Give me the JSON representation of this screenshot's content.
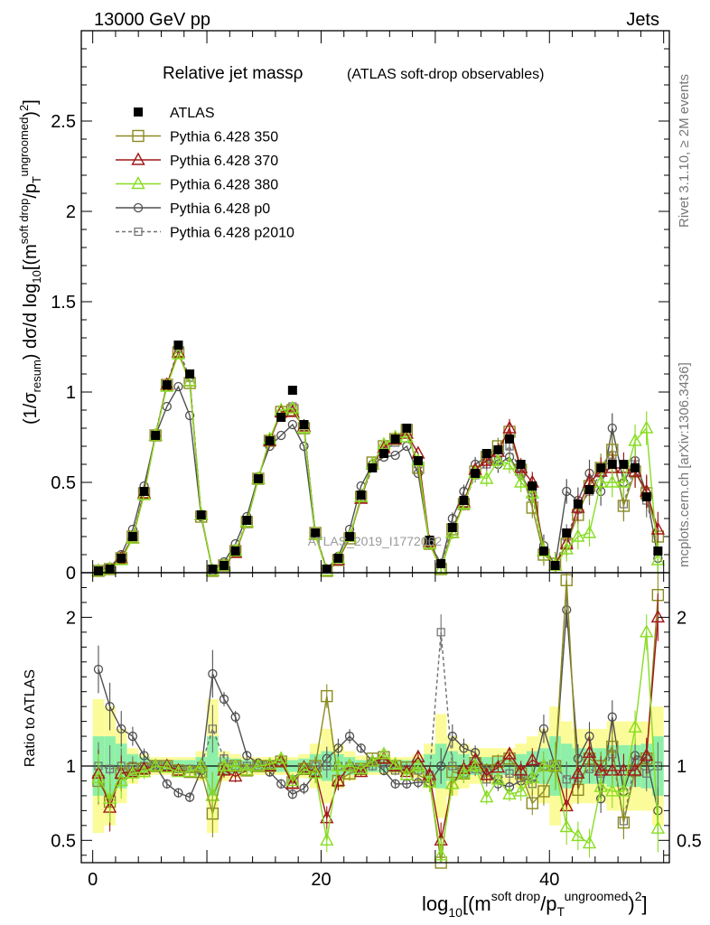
{
  "header": {
    "energy_label": "13000 GeV pp",
    "process_label": "Jets",
    "title_main": "Relative jet massρ",
    "title_sub": "(ATLAS soft-drop observables)",
    "watermark": "ATLAS_2019_I1772062",
    "side_rivet": "Rivet 3.1.10, ≥ 2M events",
    "side_mcplots": "mcplots.cern.ch [arXiv:1306.3436]"
  },
  "axes": {
    "main_ylabel": "(1/σ_resum) dσ/d log10[(m^soft drop/p_T^ungroomed)^2]",
    "ratio_ylabel": "Ratio to ATLAS",
    "xlabel": "log10[(m^soft drop/p_T^ungroomed)^2]",
    "main_yticks": [
      "0",
      "0.5",
      "1",
      "1.5",
      "2",
      "2.5"
    ],
    "ratio_yticks": [
      "0.5",
      "1",
      "2"
    ],
    "xticks": [
      "0",
      "20",
      "40"
    ]
  },
  "legend": [
    {
      "label": "ATLAS",
      "color": "#000000",
      "marker": "filled-square",
      "line": "none"
    },
    {
      "label": "Pythia 6.428 350",
      "color": "#8b8b22",
      "marker": "open-square",
      "line": "solid"
    },
    {
      "label": "Pythia 6.428 370",
      "color": "#a01818",
      "marker": "open-triangle",
      "line": "solid"
    },
    {
      "label": "Pythia 6.428 380",
      "color": "#88dd22",
      "marker": "open-triangle",
      "line": "solid"
    },
    {
      "label": "Pythia 6.428 p0",
      "color": "#505050",
      "marker": "open-circle",
      "line": "solid"
    },
    {
      "label": "Pythia 6.428 p2010",
      "color": "#707070",
      "marker": "open-square-small",
      "line": "dashed"
    }
  ],
  "chart_data": {
    "type": "line",
    "xlim": [
      -1,
      50.5
    ],
    "ylim": [
      0,
      3
    ],
    "ratio_ylim": [
      0.35,
      2.3
    ],
    "x": [
      0.5,
      1.5,
      2.5,
      3.5,
      4.5,
      5.5,
      6.5,
      7.5,
      8.5,
      9.5,
      10.5,
      11.5,
      12.5,
      13.5,
      14.5,
      15.5,
      16.5,
      17.5,
      18.5,
      19.5,
      20.5,
      21.5,
      22.5,
      23.5,
      24.5,
      25.5,
      26.5,
      27.5,
      28.5,
      29.5,
      30.5,
      31.5,
      32.5,
      33.5,
      34.5,
      35.5,
      36.5,
      37.5,
      38.5,
      39.5,
      40.5,
      41.5,
      42.5,
      43.5,
      44.5,
      45.5,
      46.5,
      47.5,
      48.5,
      49.5
    ],
    "series": [
      {
        "name": "ATLAS",
        "values": [
          0.01,
          0.02,
          0.08,
          0.2,
          0.45,
          0.76,
          1.04,
          1.26,
          1.1,
          0.32,
          0.02,
          0.04,
          0.12,
          0.29,
          0.52,
          0.73,
          0.86,
          1.01,
          0.82,
          0.22,
          0.02,
          0.08,
          0.2,
          0.43,
          0.58,
          0.66,
          0.74,
          0.8,
          0.62,
          0.18,
          0.05,
          0.25,
          0.4,
          0.55,
          0.66,
          0.68,
          0.74,
          0.6,
          0.48,
          0.12,
          0.04,
          0.22,
          0.38,
          0.46,
          0.58,
          0.6,
          0.6,
          0.58,
          0.42,
          0.12
        ]
      },
      {
        "name": "Pythia 6.428 350",
        "values": [
          0.01,
          0.02,
          0.08,
          0.2,
          0.44,
          0.76,
          1.04,
          1.22,
          1.05,
          0.31,
          0.01,
          0.04,
          0.12,
          0.28,
          0.52,
          0.73,
          0.89,
          0.9,
          0.8,
          0.22,
          0.01,
          0.07,
          0.19,
          0.42,
          0.61,
          0.7,
          0.74,
          0.79,
          0.58,
          0.16,
          0.02,
          0.24,
          0.38,
          0.56,
          0.64,
          0.7,
          0.78,
          0.57,
          0.36,
          0.1,
          0.05,
          0.16,
          0.32,
          0.48,
          0.58,
          0.68,
          0.37,
          0.56,
          0.44,
          0.2
        ]
      },
      {
        "name": "Pythia 6.428 370",
        "values": [
          0.01,
          0.02,
          0.08,
          0.19,
          0.44,
          0.76,
          1.04,
          1.22,
          1.06,
          0.32,
          0.01,
          0.04,
          0.11,
          0.28,
          0.52,
          0.73,
          0.89,
          0.89,
          0.81,
          0.21,
          0.01,
          0.07,
          0.2,
          0.41,
          0.6,
          0.69,
          0.74,
          0.77,
          0.66,
          0.17,
          0.02,
          0.22,
          0.39,
          0.57,
          0.62,
          0.67,
          0.8,
          0.58,
          0.5,
          0.12,
          0.04,
          0.16,
          0.36,
          0.5,
          0.56,
          0.58,
          0.58,
          0.56,
          0.45,
          0.24
        ]
      },
      {
        "name": "Pythia 6.428 380",
        "values": [
          0.01,
          0.02,
          0.07,
          0.19,
          0.43,
          0.76,
          1.03,
          1.21,
          1.06,
          0.32,
          0.01,
          0.04,
          0.12,
          0.28,
          0.52,
          0.74,
          0.9,
          0.91,
          0.8,
          0.21,
          0.01,
          0.08,
          0.2,
          0.42,
          0.6,
          0.71,
          0.75,
          0.75,
          0.62,
          0.16,
          0.02,
          0.22,
          0.38,
          0.55,
          0.52,
          0.62,
          0.6,
          0.5,
          0.44,
          0.12,
          0.04,
          0.13,
          0.2,
          0.22,
          0.5,
          0.5,
          0.5,
          0.73,
          0.8,
          0.07
        ]
      },
      {
        "name": "Pythia 6.428 p0",
        "values": [
          0.01,
          0.03,
          0.1,
          0.24,
          0.48,
          0.76,
          0.92,
          1.03,
          0.87,
          0.31,
          0.01,
          0.06,
          0.16,
          0.31,
          0.53,
          0.7,
          0.76,
          0.82,
          0.7,
          0.21,
          0.02,
          0.09,
          0.24,
          0.48,
          0.6,
          0.64,
          0.65,
          0.7,
          0.55,
          0.16,
          0.05,
          0.3,
          0.45,
          0.6,
          0.64,
          0.6,
          0.64,
          0.54,
          0.44,
          0.15,
          0.04,
          0.45,
          0.4,
          0.55,
          0.45,
          0.8,
          0.5,
          0.62,
          0.44,
          0.08
        ]
      },
      {
        "name": "Pythia 6.428 p2010",
        "values": [
          0.01,
          0.02,
          0.08,
          0.2,
          0.45,
          0.77,
          1.04,
          1.24,
          1.08,
          0.32,
          0.01,
          0.05,
          0.12,
          0.29,
          0.52,
          0.74,
          0.88,
          0.92,
          0.81,
          0.22,
          0.02,
          0.08,
          0.2,
          0.42,
          0.58,
          0.67,
          0.72,
          0.78,
          0.6,
          0.17,
          0.05,
          0.25,
          0.38,
          0.54,
          0.6,
          0.62,
          0.7,
          0.55,
          0.42,
          0.12,
          0.04,
          0.2,
          0.35,
          0.45,
          0.55,
          0.65,
          0.38,
          0.6,
          0.4,
          0.12
        ]
      }
    ],
    "ratio_series": [
      {
        "name": "Pythia 6.428 350",
        "values": [
          0.9,
          0.76,
          0.95,
          0.98,
          0.98,
          1.0,
          1.0,
          0.97,
          0.96,
          0.96,
          0.68,
          0.98,
          1.0,
          0.97,
          1.0,
          1.0,
          1.03,
          0.89,
          0.98,
          1.0,
          1.47,
          0.9,
          0.95,
          0.98,
          1.05,
          1.06,
          1.0,
          0.99,
          0.94,
          0.9,
          0.35,
          0.96,
          0.95,
          1.02,
          0.97,
          1.03,
          1.05,
          0.95,
          0.75,
          0.83,
          1.0,
          2.25,
          0.84,
          1.05,
          1.0,
          1.13,
          0.62,
          0.97,
          1.05,
          2.15
        ]
      },
      {
        "name": "Pythia 6.428 370",
        "values": [
          0.95,
          0.72,
          0.95,
          0.96,
          0.98,
          1.0,
          1.0,
          0.97,
          0.96,
          1.0,
          0.8,
          0.97,
          0.93,
          0.97,
          1.0,
          1.0,
          1.03,
          0.88,
          0.99,
          0.96,
          0.65,
          0.9,
          1.0,
          0.96,
          1.03,
          1.05,
          1.0,
          0.96,
          1.06,
          0.94,
          0.5,
          0.88,
          0.98,
          1.04,
          0.94,
          0.99,
          1.08,
          0.97,
          1.04,
          1.0,
          1.0,
          0.73,
          0.95,
          1.09,
          0.97,
          0.97,
          0.97,
          0.97,
          1.07,
          2.0
        ]
      },
      {
        "name": "Pythia 6.428 380",
        "values": [
          0.92,
          0.78,
          0.9,
          0.95,
          0.96,
          1.0,
          0.99,
          0.96,
          0.96,
          1.0,
          0.8,
          1.0,
          1.0,
          0.97,
          1.0,
          1.01,
          1.05,
          0.9,
          0.98,
          0.95,
          0.5,
          1.0,
          1.0,
          0.98,
          1.03,
          1.08,
          1.01,
          0.94,
          1.0,
          0.89,
          0.4,
          0.88,
          0.95,
          1.0,
          0.79,
          0.91,
          0.81,
          0.83,
          0.92,
          1.0,
          1.0,
          0.59,
          0.53,
          0.48,
          0.86,
          0.83,
          0.83,
          1.26,
          1.9,
          0.58
        ]
      },
      {
        "name": "Pythia 6.428 p0",
        "values": [
          1.65,
          1.4,
          1.25,
          1.2,
          1.07,
          1.0,
          0.88,
          0.82,
          0.79,
          0.97,
          1.62,
          1.45,
          1.33,
          1.07,
          1.02,
          0.96,
          0.88,
          0.81,
          0.85,
          0.95,
          1.05,
          1.12,
          1.2,
          1.12,
          1.03,
          0.97,
          0.88,
          0.88,
          0.89,
          0.89,
          1.0,
          1.2,
          1.12,
          1.09,
          0.97,
          0.88,
          0.86,
          0.9,
          0.92,
          1.25,
          1.0,
          2.05,
          1.05,
          1.2,
          0.78,
          1.33,
          0.83,
          1.07,
          1.05,
          0.7
        ]
      },
      {
        "name": "Pythia 6.428 p2010",
        "values": [
          1.0,
          0.98,
          1.0,
          1.0,
          1.0,
          1.01,
          1.0,
          0.98,
          0.98,
          1.0,
          1.25,
          1.05,
          1.0,
          1.0,
          1.0,
          1.01,
          1.02,
          0.91,
          0.99,
          1.0,
          1.0,
          1.0,
          1.0,
          0.98,
          1.0,
          1.02,
          0.97,
          0.98,
          0.97,
          0.94,
          1.9,
          1.0,
          0.95,
          0.98,
          0.91,
          0.91,
          0.95,
          0.92,
          0.88,
          1.0,
          1.0,
          0.91,
          0.92,
          0.98,
          0.95,
          1.08,
          0.63,
          1.03,
          0.95,
          1.0
        ]
      }
    ],
    "uncertainty_bands": {
      "inner_green_halfwidth": [
        0.2,
        0.2,
        0.15,
        0.08,
        0.06,
        0.04,
        0.04,
        0.04,
        0.04,
        0.06,
        0.2,
        0.06,
        0.05,
        0.04,
        0.04,
        0.04,
        0.04,
        0.04,
        0.05,
        0.08,
        0.1,
        0.08,
        0.06,
        0.04,
        0.04,
        0.04,
        0.04,
        0.04,
        0.05,
        0.08,
        0.15,
        0.1,
        0.08,
        0.06,
        0.06,
        0.06,
        0.06,
        0.08,
        0.1,
        0.12,
        0.2,
        0.15,
        0.12,
        0.12,
        0.12,
        0.14,
        0.14,
        0.14,
        0.15,
        0.2
      ],
      "outer_yellow_halfwidth": [
        0.45,
        0.4,
        0.25,
        0.12,
        0.08,
        0.06,
        0.06,
        0.06,
        0.06,
        0.1,
        0.45,
        0.1,
        0.08,
        0.06,
        0.06,
        0.06,
        0.06,
        0.06,
        0.08,
        0.15,
        0.25,
        0.15,
        0.1,
        0.07,
        0.06,
        0.06,
        0.06,
        0.06,
        0.08,
        0.15,
        0.35,
        0.2,
        0.15,
        0.12,
        0.12,
        0.12,
        0.12,
        0.15,
        0.2,
        0.25,
        0.4,
        0.3,
        0.25,
        0.25,
        0.25,
        0.3,
        0.3,
        0.3,
        0.3,
        0.4
      ]
    },
    "xlabel": "log10[(m^soft drop/p_T^ungroomed)^2]",
    "ylabel": "(1/σ_resum) dσ/d log10[(m^soft drop/p_T^ungroomed)^2]",
    "ratio_ylabel": "Ratio to ATLAS",
    "grid": false,
    "legend_position": "top-left"
  }
}
